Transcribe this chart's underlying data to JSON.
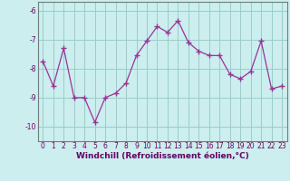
{
  "x": [
    0,
    1,
    2,
    3,
    4,
    5,
    6,
    7,
    8,
    9,
    10,
    11,
    12,
    13,
    14,
    15,
    16,
    17,
    18,
    19,
    20,
    21,
    22,
    23
  ],
  "y": [
    -7.75,
    -8.6,
    -7.3,
    -9.0,
    -9.0,
    -9.85,
    -9.0,
    -8.85,
    -8.5,
    -7.55,
    -7.05,
    -6.55,
    -6.75,
    -6.35,
    -7.1,
    -7.4,
    -7.55,
    -7.55,
    -8.2,
    -8.35,
    -8.1,
    -7.05,
    -8.7,
    -8.6
  ],
  "line_color": "#993399",
  "marker": "+",
  "markersize": 4,
  "linewidth": 0.9,
  "bg_color": "#cceeee",
  "grid_color": "#99cccc",
  "xlabel": "Windchill (Refroidissement éolien,°C)",
  "xlabel_fontsize": 6.5,
  "xlabel_color": "#660066",
  "tick_color": "#660066",
  "tick_fontsize": 5.5,
  "ylim": [
    -10.5,
    -5.7
  ],
  "xlim": [
    -0.5,
    23.5
  ],
  "yticks": [
    -10,
    -9,
    -8,
    -7,
    -6
  ],
  "ytick_labels": [
    "-10",
    "-9",
    "-8",
    "-7",
    "-6"
  ],
  "xticks": [
    0,
    1,
    2,
    3,
    4,
    5,
    6,
    7,
    8,
    9,
    10,
    11,
    12,
    13,
    14,
    15,
    16,
    17,
    18,
    19,
    20,
    21,
    22,
    23
  ]
}
